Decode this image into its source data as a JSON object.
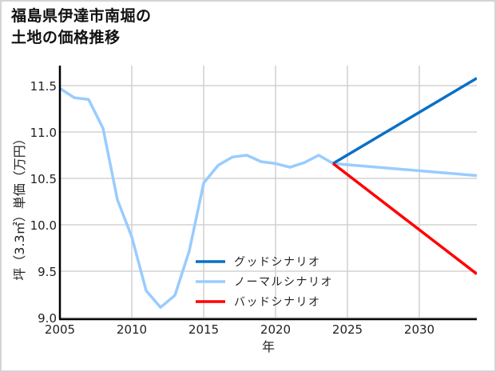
{
  "title": {
    "line1": "福島県伊達市南堀の",
    "line2": "土地の価格推移"
  },
  "chart_data": {
    "type": "line",
    "title": "福島県伊達市南堀の土地の価格推移",
    "xlabel": "年",
    "ylabel": "坪（3.3㎡）単価（万円）",
    "xlim": [
      2005,
      2034
    ],
    "ylim": [
      9.0,
      11.7
    ],
    "x_ticks": [
      2005,
      2010,
      2015,
      2020,
      2025,
      2030
    ],
    "y_ticks": [
      9.0,
      9.5,
      10.0,
      10.5,
      11.0,
      11.5
    ],
    "x_tick_labels": [
      "2005",
      "2010",
      "2015",
      "2020",
      "2025",
      "2030"
    ],
    "y_tick_labels": [
      "9.0",
      "9.5",
      "10.0",
      "10.5",
      "11.0",
      "11.5"
    ],
    "grid": true,
    "legend_position": "lower center",
    "series": [
      {
        "name": "グッドシナリオ",
        "color": "#0a70c6",
        "x": [
          2024,
          2034
        ],
        "values": [
          10.66,
          11.58
        ]
      },
      {
        "name": "ノーマルシナリオ",
        "color": "#99ccff",
        "x": [
          2005,
          2006,
          2007,
          2008,
          2009,
          2010,
          2011,
          2012,
          2013,
          2014,
          2015,
          2016,
          2017,
          2018,
          2019,
          2020,
          2021,
          2022,
          2023,
          2024,
          2034
        ],
        "values": [
          11.47,
          11.37,
          11.35,
          11.04,
          10.27,
          9.87,
          9.29,
          9.11,
          9.24,
          9.72,
          10.45,
          10.64,
          10.73,
          10.75,
          10.68,
          10.66,
          10.62,
          10.67,
          10.75,
          10.66,
          10.53
        ]
      },
      {
        "name": "バッドシナリオ",
        "color": "#ff0000",
        "x": [
          2024,
          2034
        ],
        "values": [
          10.66,
          9.47
        ]
      }
    ]
  }
}
